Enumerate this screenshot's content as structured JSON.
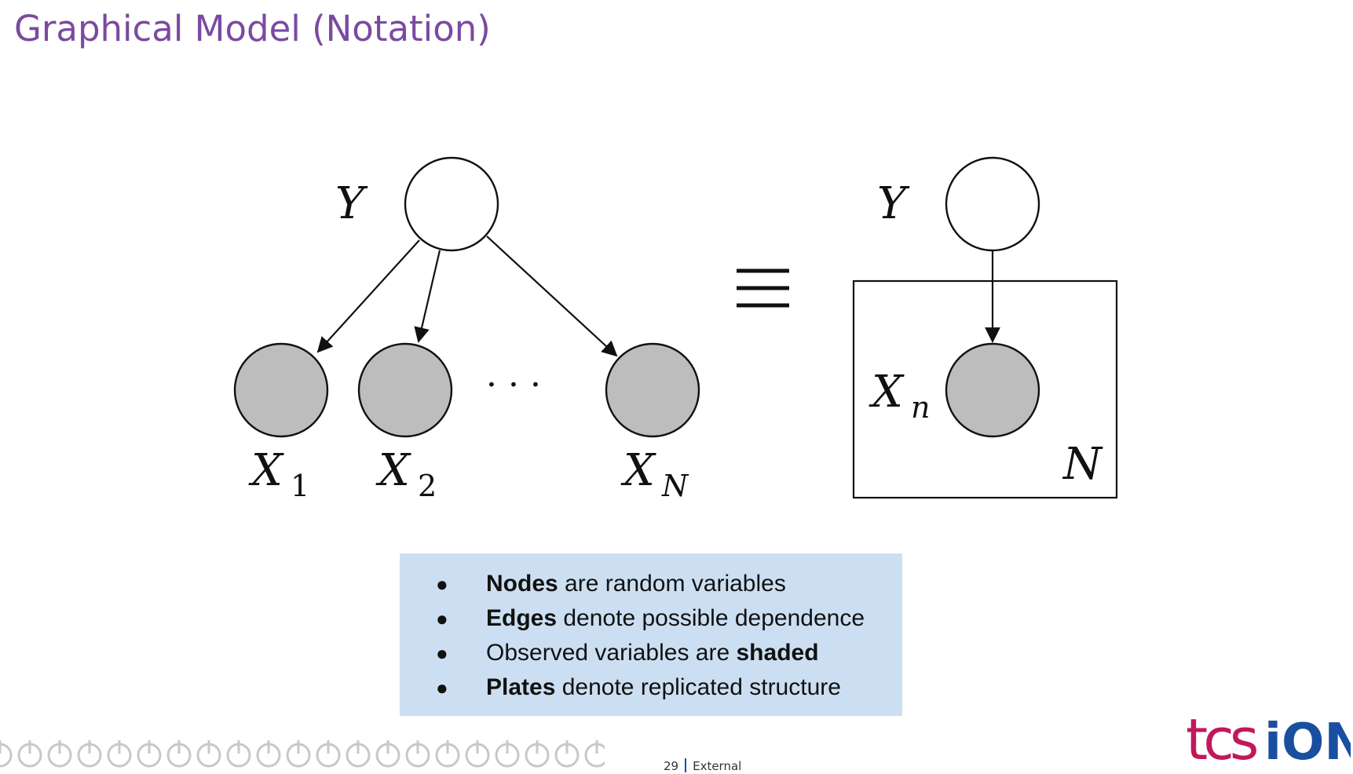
{
  "slide": {
    "title": "Graphical Model (Notation)"
  },
  "diagram": {
    "left_graph": {
      "parent_label": "Y",
      "children": [
        {
          "base": "X",
          "sub": "1"
        },
        {
          "base": "X",
          "sub": "2"
        },
        {
          "base": "X",
          "sub": "N"
        }
      ],
      "ellipsis": "· · ·"
    },
    "equivalence_symbol": "≡",
    "plate_graph": {
      "parent_label": "Y",
      "child": {
        "base": "X",
        "sub": "n"
      },
      "plate_label": "N"
    },
    "colors": {
      "observed_fill": "#bdbdbd",
      "latent_fill": "#ffffff",
      "stroke": "#111111"
    }
  },
  "notes": {
    "items": [
      {
        "bold_lead": "Nodes",
        "rest": " are random variables"
      },
      {
        "bold_lead": "Edges",
        "rest": " denote possible dependence"
      },
      {
        "plain_lead": "Observed variables are ",
        "bold_tail": "shaded"
      },
      {
        "bold_lead": "Plates",
        "rest": " denote replicated structure"
      }
    ],
    "bullet": "●",
    "background": "#ccdff2"
  },
  "footer": {
    "page_number": "29",
    "classification": "External"
  },
  "logo": {
    "text_left": "tcs",
    "text_right": "iON"
  },
  "accent_colors": {
    "title": "#7a4aa0",
    "logo_blue": "#1a4fa0",
    "logo_magenta": "#c2185b"
  }
}
